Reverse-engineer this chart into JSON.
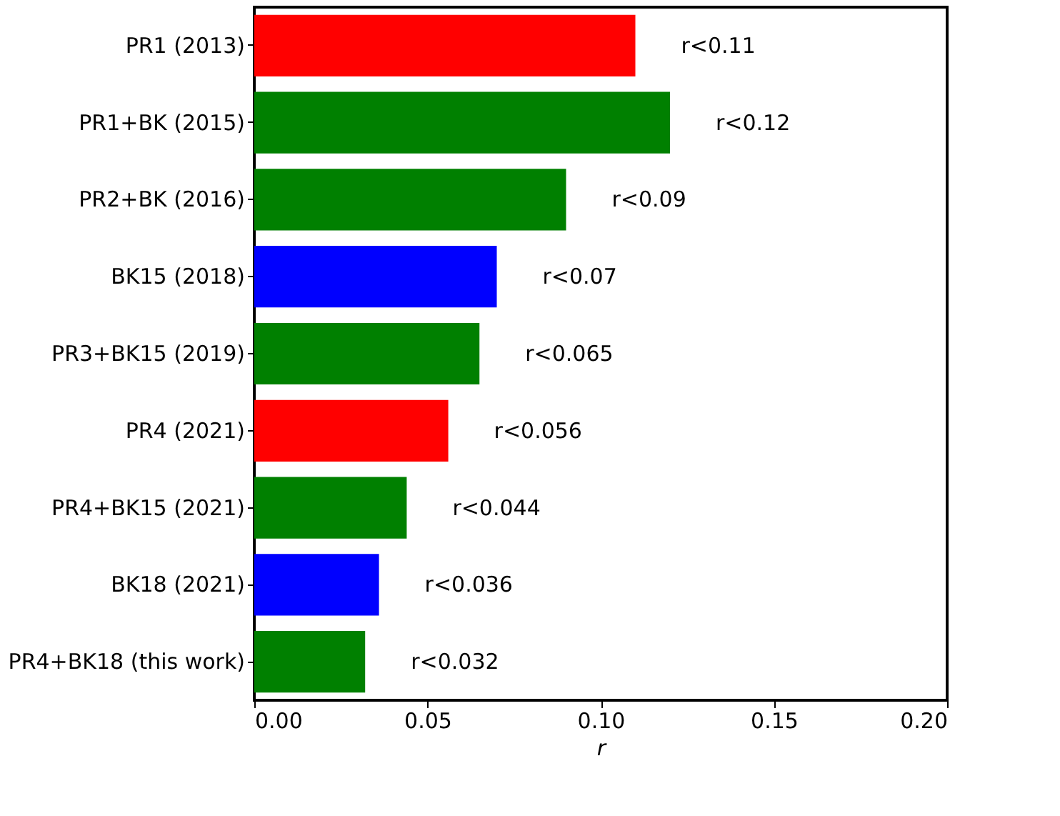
{
  "chart_data": {
    "type": "bar",
    "orientation": "horizontal",
    "xlabel": "r",
    "categories": [
      "PR1 (2013)",
      "PR1+BK (2015)",
      "PR2+BK (2016)",
      "BK15 (2018)",
      "PR3+BK15 (2019)",
      "PR4 (2021)",
      "PR4+BK15 (2021)",
      "BK18 (2021)",
      "PR4+BK18 (this work)"
    ],
    "values": [
      0.11,
      0.12,
      0.09,
      0.07,
      0.065,
      0.056,
      0.044,
      0.036,
      0.032
    ],
    "colors": [
      "#ff0000",
      "#008000",
      "#008000",
      "#0000ff",
      "#008000",
      "#ff0000",
      "#008000",
      "#0000ff",
      "#008000"
    ],
    "value_labels": [
      "r<0.11",
      "r<0.12",
      "r<0.09",
      "r<0.07",
      "r<0.065",
      "r<0.056",
      "r<0.044",
      "r<0.036",
      "r<0.032"
    ],
    "xlim": [
      0,
      0.2
    ],
    "xticks": [
      {
        "value": 0,
        "label": "0.00"
      },
      {
        "value": 0.05,
        "label": "0.05"
      },
      {
        "value": 0.1,
        "label": "0.10"
      },
      {
        "value": 0.15,
        "label": "0.15"
      },
      {
        "value": 0.2,
        "label": "0.20"
      }
    ],
    "grid": false
  }
}
